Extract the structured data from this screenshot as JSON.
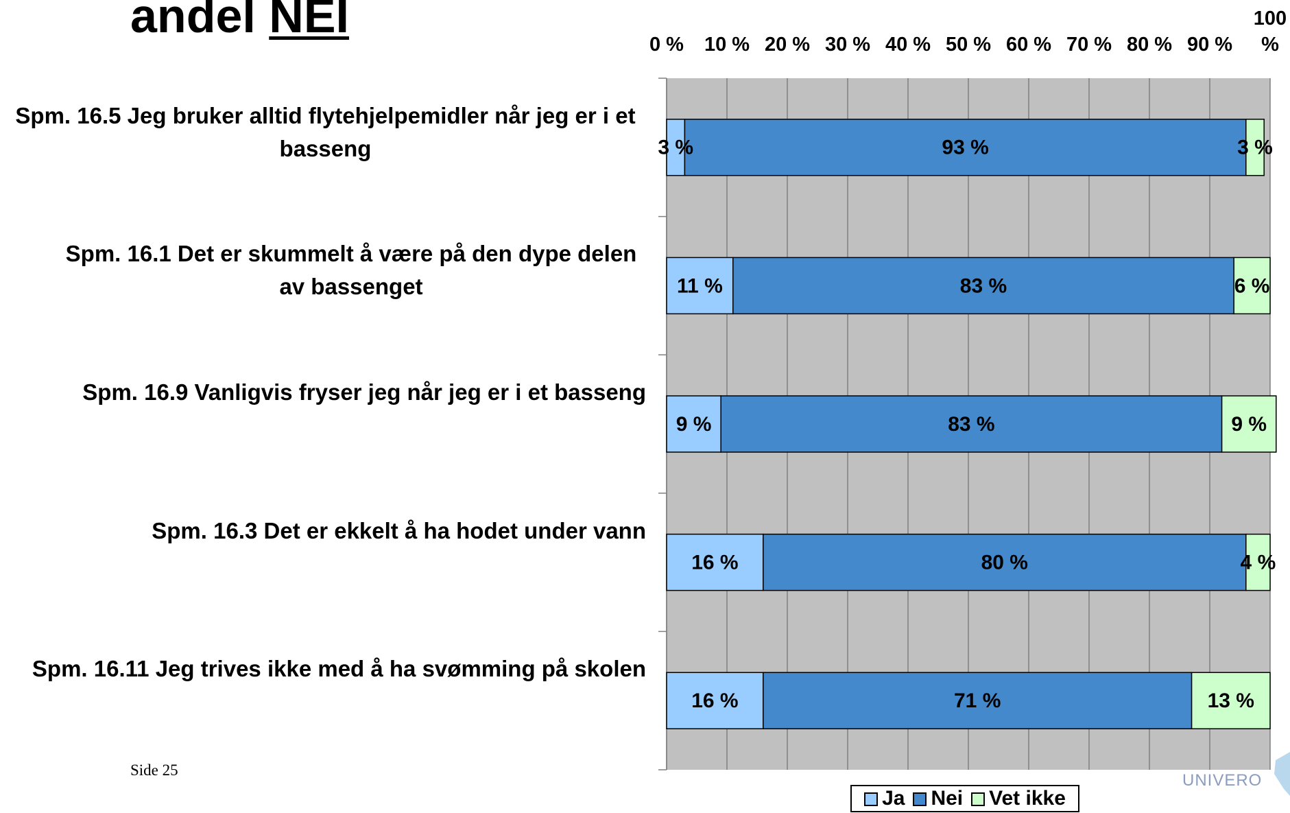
{
  "chart_data": {
    "type": "stacked_barh",
    "title": "andel",
    "title_underlined": "NEI",
    "categories": [
      "Spm. 16.5 Jeg bruker alltid flytehjelpemidler når jeg er i et basseng",
      "Spm. 16.1 Det er skummelt å være på den dype delen av bassenget",
      "Spm. 16.9 Vanligvis fryser jeg når jeg er i et basseng",
      "Spm. 16.3 Det er ekkelt å ha hodet under vann",
      "Spm. 16.11 Jeg trives ikke med å ha svømming på skolen"
    ],
    "series": [
      {
        "name": "Ja",
        "color": "#99ccff",
        "values": [
          3,
          11,
          9,
          16,
          16
        ],
        "value_labels": [
          "3 %",
          "11 %",
          "9 %",
          "16 %",
          "16 %"
        ]
      },
      {
        "name": "Nei",
        "color": "#4489cb",
        "values": [
          93,
          83,
          83,
          80,
          71
        ],
        "value_labels": [
          "93 %",
          "83 %",
          "83 %",
          "80 %",
          "71 %"
        ]
      },
      {
        "name": "Vet ikke",
        "color": "#ccffcc",
        "values": [
          3,
          6,
          9,
          4,
          13
        ],
        "value_labels": [
          "3 %",
          "6 %",
          "9 %",
          "4 %",
          "13 %"
        ]
      }
    ],
    "xlim": [
      0,
      100
    ],
    "xticks": [
      {
        "value": 0,
        "label": "0 %"
      },
      {
        "value": 10,
        "label": "10 %"
      },
      {
        "value": 20,
        "label": "20 %"
      },
      {
        "value": 30,
        "label": "30 %"
      },
      {
        "value": 40,
        "label": "40 %"
      },
      {
        "value": 50,
        "label": "50 %"
      },
      {
        "value": 60,
        "label": "60 %"
      },
      {
        "value": 70,
        "label": "70 %"
      },
      {
        "value": 80,
        "label": "80 %"
      },
      {
        "value": 90,
        "label": "90 %"
      },
      {
        "value": 100,
        "label": "100 %"
      }
    ],
    "grid": true,
    "legend": "bottom"
  },
  "footer": {
    "page": "Side 25",
    "logo": "UNIVERO"
  }
}
